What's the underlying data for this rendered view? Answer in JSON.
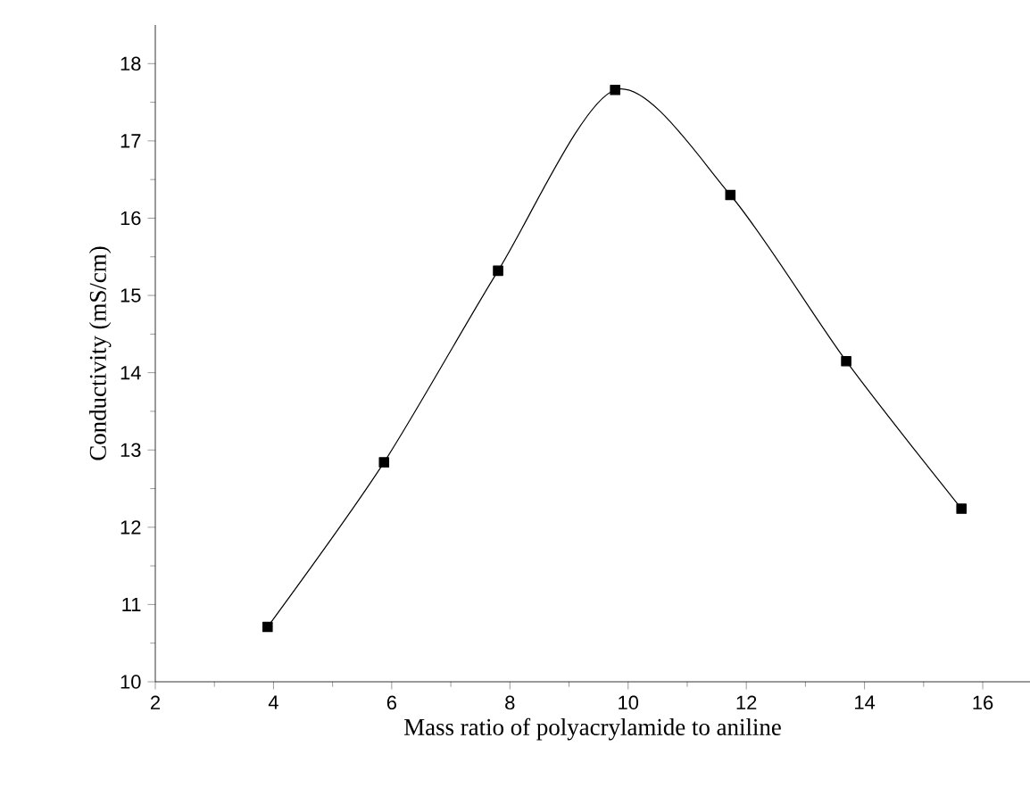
{
  "chart_data": {
    "type": "line",
    "xlabel": "Mass ratio of polyacrylamide to aniline",
    "ylabel": "Conductivity (mS/cm)",
    "x": [
      3.9,
      5.87,
      7.8,
      9.78,
      11.73,
      13.69,
      15.64
    ],
    "series": [
      {
        "color": "#000000",
        "values": [
          10.71,
          12.84,
          15.32,
          17.66,
          16.3,
          14.15,
          12.24
        ]
      }
    ],
    "xlim": [
      2,
      16.8
    ],
    "ylim": [
      10,
      18.5
    ],
    "xticks": [
      2,
      4,
      6,
      8,
      10,
      12,
      14,
      16
    ],
    "yticks": [
      10,
      11,
      12,
      13,
      14,
      15,
      16,
      17,
      18
    ],
    "marker": "square",
    "line_style": "solid",
    "grid": false
  }
}
